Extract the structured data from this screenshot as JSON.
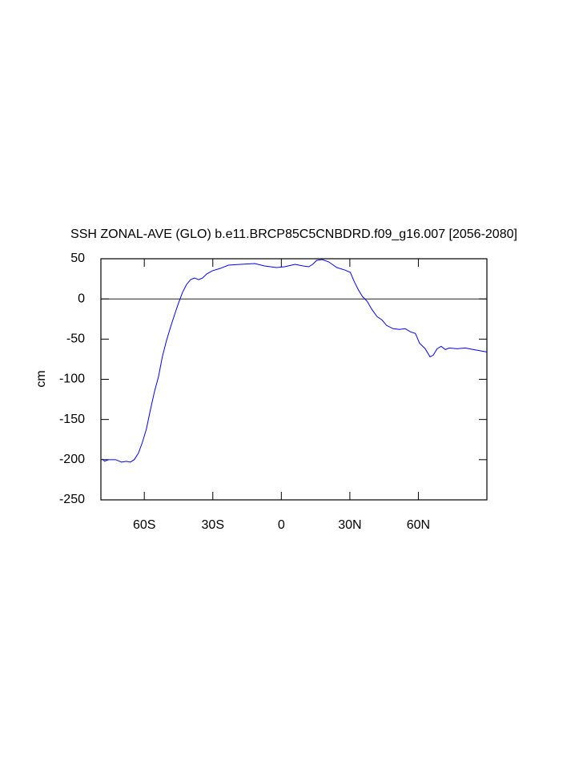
{
  "chart_data": {
    "type": "line",
    "title": "SSH ZONAL-AVE (GLO) b.e11.BRCP85C5CNBDRD.f09_g16.007 [2056-2080]",
    "ylabel": "cm",
    "xlim": [
      -79,
      90
    ],
    "ylim": [
      -250,
      50
    ],
    "xticks": [
      {
        "value": -60,
        "label": "60S"
      },
      {
        "value": -30,
        "label": "30S"
      },
      0,
      {
        "value": 30,
        "label": "30N"
      },
      {
        "value": 60,
        "label": "60N"
      }
    ],
    "yticks": [
      50,
      0,
      -50,
      -100,
      -150,
      -200,
      -250
    ],
    "series": [
      {
        "color": "#0000ff",
        "x": [
          -78.4,
          -77.4,
          -75.6,
          -72.5,
          -70.0,
          -67.9,
          -66.1,
          -64.4,
          -62.6,
          -60.9,
          -59.1,
          -57.4,
          -55.6,
          -53.8,
          -52.1,
          -50.3,
          -48.5,
          -46.8,
          -45.0,
          -43.3,
          -41.5,
          -39.7,
          -38.0,
          -36.2,
          -34.5,
          -32.7,
          -30.2,
          -26.7,
          -23.2,
          -17.9,
          -11.6,
          -7.4,
          -2.1,
          1.4,
          6.0,
          9.5,
          12.0,
          13.7,
          15.5,
          17.9,
          20.8,
          24.3,
          27.8,
          30.2,
          32.0,
          33.8,
          35.5,
          37.6,
          39.4,
          41.9,
          44.0,
          46.1,
          48.9,
          51.7,
          54.2,
          56.6,
          58.7,
          60.5,
          63.0,
          65.1,
          66.5,
          68.2,
          70.0,
          71.8,
          73.5,
          77.0,
          80.5,
          84.1,
          90
        ],
        "values": [
          -199,
          -202,
          -200,
          -200,
          -203,
          -202,
          -203,
          -200,
          -192,
          -179,
          -162,
          -139,
          -116,
          -97,
          -72,
          -52,
          -35,
          -20,
          -5,
          8,
          18,
          24,
          26,
          24,
          26,
          31,
          35,
          38,
          42,
          43,
          44,
          41,
          39,
          40,
          43,
          41,
          40,
          43,
          48,
          49,
          46,
          39,
          36,
          33,
          21,
          11,
          3,
          -3,
          -12,
          -22,
          -26,
          -33,
          -37,
          -38,
          -37,
          -41,
          -43,
          -55,
          -62,
          -72,
          -70,
          -62,
          -59,
          -63,
          -61,
          -62,
          -61,
          -63,
          -66
        ]
      }
    ]
  }
}
